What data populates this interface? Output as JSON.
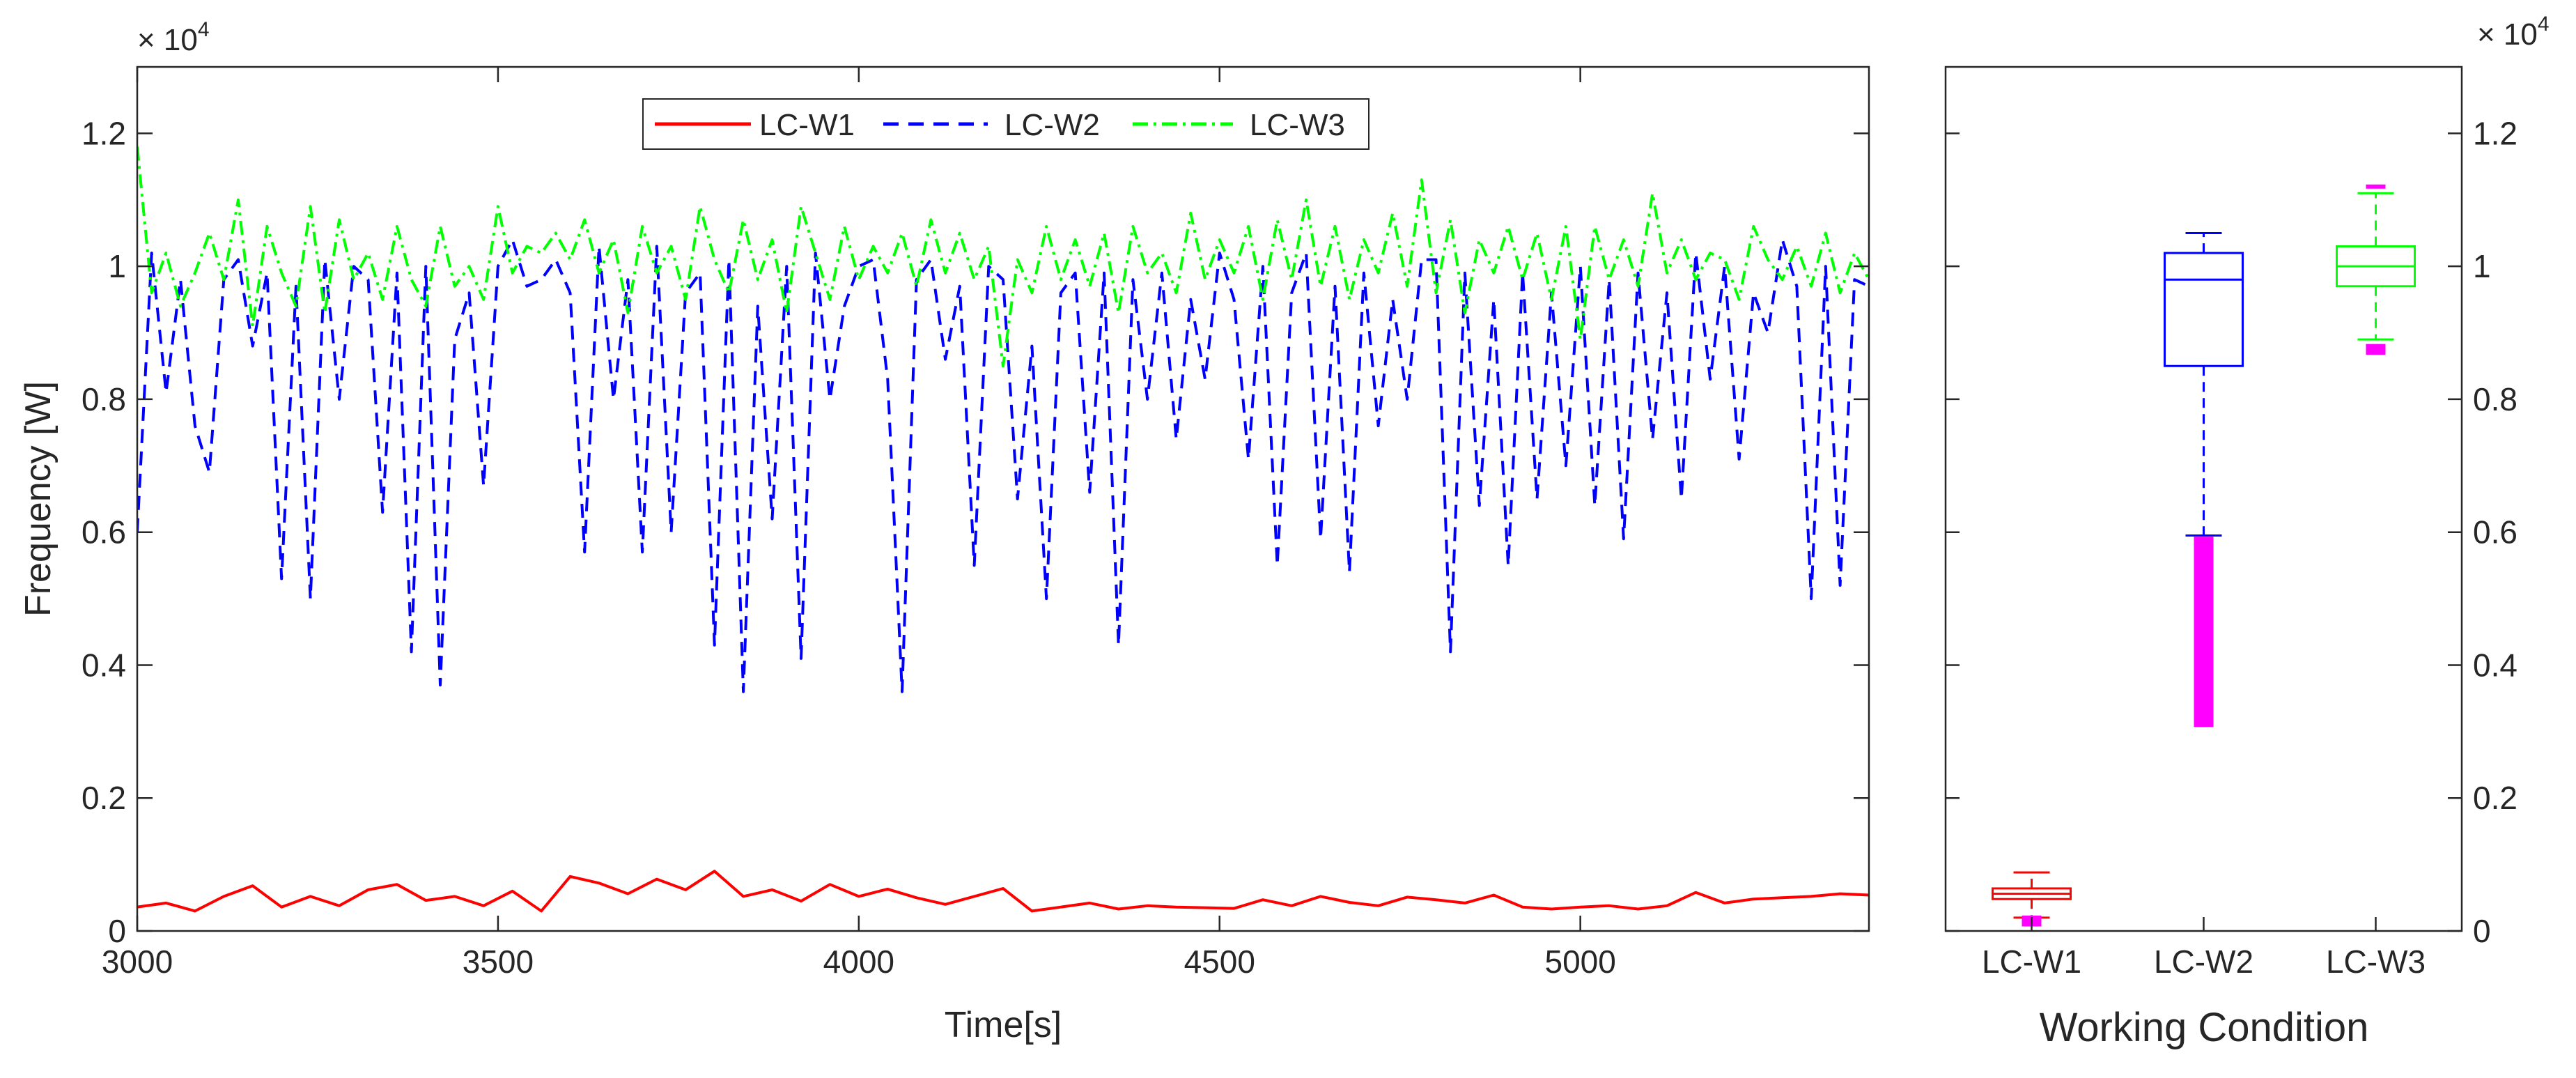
{
  "chart_data": [
    {
      "type": "line",
      "xlabel": "Time[s]",
      "ylabel": "Frequency [W]",
      "xlim": [
        3000,
        5400
      ],
      "ylim": [
        0,
        13000
      ],
      "xticks": [
        3000,
        3500,
        4000,
        4500,
        5000
      ],
      "xtick_labels": [
        "3000",
        "3500",
        "4000",
        "4500",
        "5000"
      ],
      "yticks": [
        0,
        2000,
        4000,
        6000,
        8000,
        10000,
        12000
      ],
      "ytick_labels": [
        "0",
        "0.2",
        "0.4",
        "0.6",
        "0.8",
        "1",
        "1.2"
      ],
      "exponent_label": "× 10",
      "exponent_power": "4",
      "legend": {
        "position": "top-center",
        "entries": [
          "LC-W1",
          "LC-W2",
          "LC-W3"
        ]
      },
      "series": [
        {
          "name": "LC-W1",
          "color": "#ff0000",
          "style": "solid",
          "x": [
            3000,
            3040,
            3080,
            3120,
            3160,
            3200,
            3240,
            3280,
            3320,
            3360,
            3400,
            3440,
            3480,
            3520,
            3560,
            3600,
            3640,
            3680,
            3720,
            3760,
            3800,
            3840,
            3880,
            3920,
            3960,
            4000,
            4040,
            4080,
            4120,
            4160,
            4200,
            4240,
            4280,
            4320,
            4360,
            4400,
            4440,
            4480,
            4520,
            4560,
            4600,
            4640,
            4680,
            4720,
            4760,
            4800,
            4840,
            4880,
            4920,
            4960,
            5000,
            5040,
            5080,
            5120,
            5160,
            5200,
            5240,
            5280,
            5320,
            5360,
            5400
          ],
          "values": [
            360,
            420,
            300,
            520,
            680,
            360,
            520,
            380,
            620,
            700,
            460,
            520,
            380,
            600,
            300,
            820,
            720,
            560,
            780,
            620,
            900,
            520,
            620,
            450,
            700,
            520,
            630,
            500,
            400,
            520,
            640,
            300,
            360,
            420,
            330,
            380,
            360,
            350,
            340,
            470,
            380,
            520,
            430,
            380,
            510,
            470,
            420,
            540,
            360,
            330,
            360,
            380,
            330,
            380,
            580,
            420,
            480,
            500,
            520,
            560,
            540
          ]
        },
        {
          "name": "LC-W2",
          "color": "#0000ff",
          "style": "dashed",
          "x": [
            3000,
            3020,
            3040,
            3060,
            3080,
            3100,
            3120,
            3140,
            3160,
            3180,
            3200,
            3220,
            3240,
            3260,
            3280,
            3300,
            3320,
            3340,
            3360,
            3380,
            3400,
            3420,
            3440,
            3460,
            3480,
            3500,
            3520,
            3540,
            3560,
            3580,
            3600,
            3620,
            3640,
            3660,
            3680,
            3700,
            3720,
            3740,
            3760,
            3780,
            3800,
            3820,
            3840,
            3860,
            3880,
            3900,
            3920,
            3940,
            3960,
            3980,
            4000,
            4020,
            4040,
            4060,
            4080,
            4100,
            4120,
            4140,
            4160,
            4180,
            4200,
            4220,
            4240,
            4260,
            4280,
            4300,
            4320,
            4340,
            4360,
            4380,
            4400,
            4420,
            4440,
            4460,
            4480,
            4500,
            4520,
            4540,
            4560,
            4580,
            4600,
            4620,
            4640,
            4660,
            4680,
            4700,
            4720,
            4740,
            4760,
            4780,
            4800,
            4820,
            4840,
            4860,
            4880,
            4900,
            4920,
            4940,
            4960,
            4980,
            5000,
            5020,
            5040,
            5060,
            5080,
            5100,
            5120,
            5140,
            5160,
            5180,
            5200,
            5220,
            5240,
            5260,
            5280,
            5300,
            5320,
            5340,
            5360,
            5380,
            5400
          ],
          "values": [
            6000,
            10200,
            8100,
            9800,
            7600,
            6900,
            9800,
            10100,
            8800,
            9900,
            5300,
            9700,
            5000,
            10100,
            8000,
            10000,
            9800,
            6300,
            9900,
            4200,
            10000,
            3700,
            8900,
            9600,
            6700,
            10000,
            10400,
            9700,
            9800,
            10100,
            9600,
            5700,
            10300,
            8000,
            9800,
            5700,
            10300,
            6000,
            9600,
            9900,
            4300,
            10100,
            3600,
            9400,
            6200,
            10000,
            4100,
            10200,
            8000,
            9400,
            10000,
            10100,
            8300,
            3600,
            9800,
            10100,
            8600,
            9700,
            5500,
            10000,
            9800,
            6500,
            8800,
            5000,
            9600,
            9900,
            6600,
            9900,
            4300,
            9800,
            8000,
            9900,
            7400,
            9500,
            8300,
            10200,
            9500,
            7100,
            10000,
            5500,
            9600,
            10200,
            5900,
            9700,
            5400,
            9900,
            7600,
            9500,
            8000,
            10100,
            10100,
            4200,
            9900,
            6400,
            9500,
            5500,
            9900,
            6500,
            9600,
            7000,
            10000,
            6400,
            9800,
            5900,
            9900,
            7400,
            9600,
            6500,
            10200,
            8300,
            10000,
            7100,
            9600,
            9000,
            10400,
            9700,
            5000,
            10000,
            5200,
            9800,
            9700
          ]
        },
        {
          "name": "LC-W3",
          "color": "#00ff00",
          "style": "dashdot",
          "x": [
            3000,
            3020,
            3040,
            3060,
            3080,
            3100,
            3120,
            3140,
            3160,
            3180,
            3200,
            3220,
            3240,
            3260,
            3280,
            3300,
            3320,
            3340,
            3360,
            3380,
            3400,
            3420,
            3440,
            3460,
            3480,
            3500,
            3520,
            3540,
            3560,
            3580,
            3600,
            3620,
            3640,
            3660,
            3680,
            3700,
            3720,
            3740,
            3760,
            3780,
            3800,
            3820,
            3840,
            3860,
            3880,
            3900,
            3920,
            3940,
            3960,
            3980,
            4000,
            4020,
            4040,
            4060,
            4080,
            4100,
            4120,
            4140,
            4160,
            4180,
            4200,
            4220,
            4240,
            4260,
            4280,
            4300,
            4320,
            4340,
            4360,
            4380,
            4400,
            4420,
            4440,
            4460,
            4480,
            4500,
            4520,
            4540,
            4560,
            4580,
            4600,
            4620,
            4640,
            4660,
            4680,
            4700,
            4720,
            4740,
            4760,
            4780,
            4800,
            4820,
            4840,
            4860,
            4880,
            4900,
            4920,
            4940,
            4960,
            4980,
            5000,
            5020,
            5040,
            5060,
            5080,
            5100,
            5120,
            5140,
            5160,
            5180,
            5200,
            5220,
            5240,
            5260,
            5280,
            5300,
            5320,
            5340,
            5360,
            5380,
            5400
          ],
          "values": [
            11800,
            9600,
            10200,
            9400,
            9900,
            10500,
            9800,
            11000,
            9100,
            10600,
            9900,
            9400,
            10900,
            9300,
            10700,
            9800,
            10200,
            9500,
            10600,
            9800,
            9400,
            10600,
            9700,
            10000,
            9500,
            10900,
            9900,
            10300,
            10200,
            10500,
            10100,
            10700,
            9900,
            10400,
            9300,
            10600,
            9900,
            10300,
            9500,
            10900,
            10100,
            9600,
            10700,
            9800,
            10400,
            9300,
            10900,
            10200,
            9500,
            10600,
            9800,
            10300,
            9900,
            10500,
            9700,
            10700,
            9900,
            10500,
            9800,
            10300,
            8500,
            10100,
            9600,
            10600,
            9800,
            10400,
            9700,
            10500,
            9300,
            10600,
            9900,
            10200,
            9600,
            10800,
            9800,
            10400,
            9900,
            10600,
            9500,
            10700,
            9800,
            11000,
            9700,
            10600,
            9500,
            10400,
            9900,
            10800,
            9700,
            11300,
            9600,
            10700,
            9300,
            10400,
            9900,
            10600,
            9800,
            10500,
            9500,
            10600,
            8900,
            10600,
            9800,
            10400,
            9700,
            11100,
            9900,
            10400,
            9800,
            10200,
            10100,
            9500,
            10600,
            10100,
            9800,
            10300,
            9700,
            10500,
            9600,
            10200,
            9800
          ]
        }
      ]
    },
    {
      "type": "box",
      "xlabel": "Working Condition",
      "categories": [
        "LC-W1",
        "LC-W2",
        "LC-W3"
      ],
      "ylim": [
        0,
        13000
      ],
      "yticks": [
        0,
        2000,
        4000,
        6000,
        8000,
        10000,
        12000
      ],
      "ytick_labels": [
        "0",
        "0.2",
        "0.4",
        "0.6",
        "0.8",
        "1",
        "1.2"
      ],
      "exponent_label": "× 10",
      "exponent_power": "4",
      "outlier_color": "#ff00ff",
      "boxes": [
        {
          "name": "LC-W1",
          "color": "#ff0000",
          "whisker_low": 200,
          "q1": 480,
          "median": 560,
          "q3": 640,
          "whisker_high": 880,
          "outliers_low": [
            100,
            200
          ],
          "outliers_high": []
        },
        {
          "name": "LC-W2",
          "color": "#0000ff",
          "whisker_low": 5950,
          "q1": 8500,
          "median": 9800,
          "q3": 10200,
          "whisker_high": 10500,
          "outliers_low": [
            3100,
            3500,
            4000,
            4500,
            5000,
            5500,
            5900
          ],
          "outliers_high": []
        },
        {
          "name": "LC-W3",
          "color": "#00ff00",
          "whisker_low": 8900,
          "q1": 9700,
          "median": 10000,
          "q3": 10300,
          "whisker_high": 11100,
          "outliers_low": [
            8700,
            8800
          ],
          "outliers_high": [
            11200
          ]
        }
      ]
    }
  ]
}
